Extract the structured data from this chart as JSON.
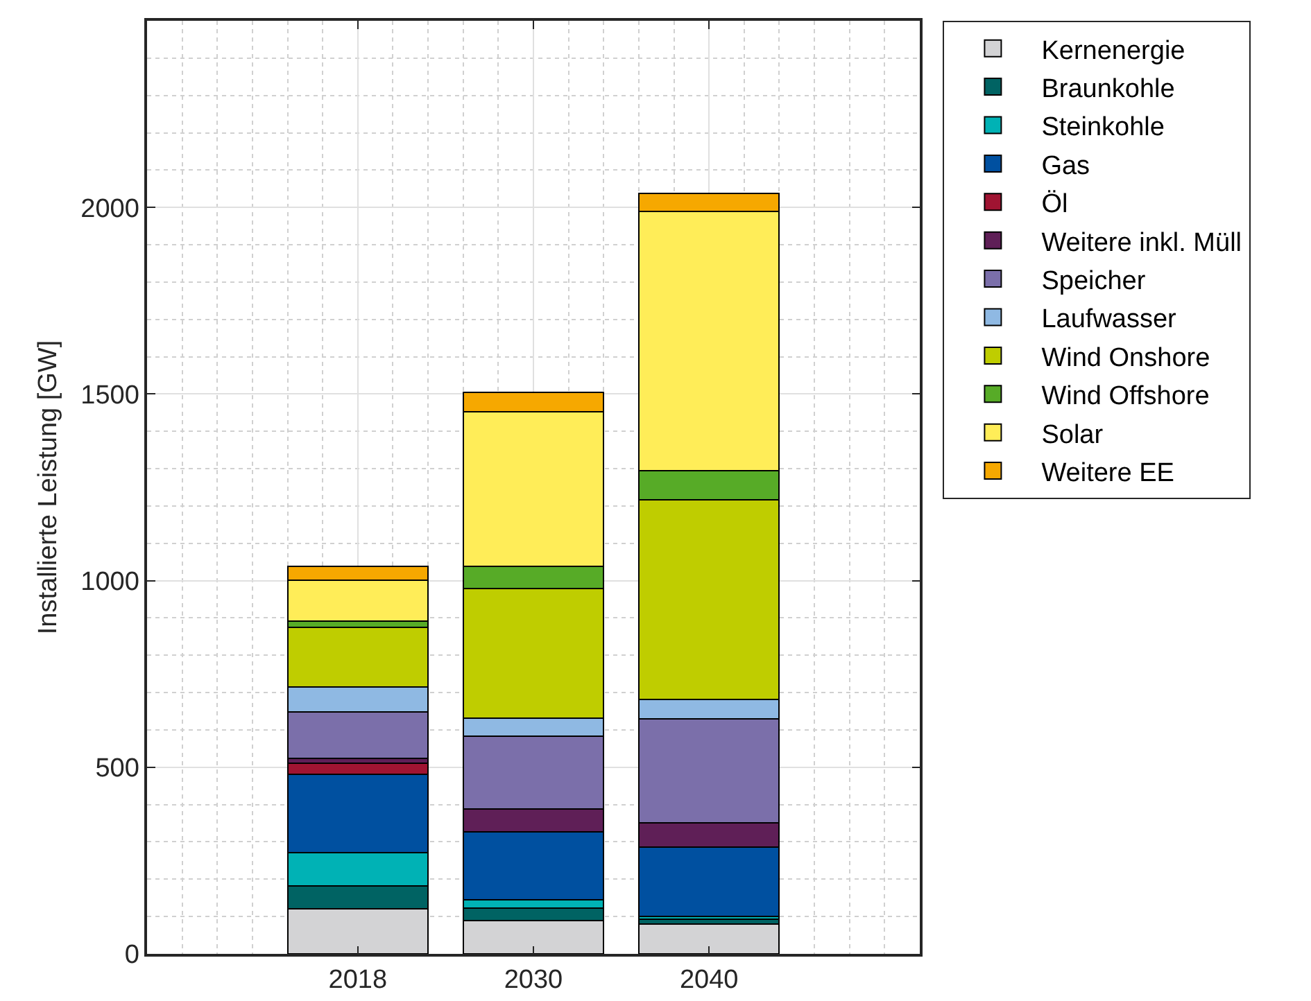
{
  "chart_data": {
    "type": "bar",
    "stacked": true,
    "ylabel": "Installierte Leistung [GW]",
    "categories": [
      "2018",
      "2030",
      "2040"
    ],
    "series": [
      {
        "name": "Kernenergie",
        "color": "#d3d3d5",
        "values": [
          121,
          89,
          79
        ]
      },
      {
        "name": "Braunkohle",
        "color": "#006363",
        "values": [
          61,
          33,
          13
        ]
      },
      {
        "name": "Steinkohle",
        "color": "#00b2b5",
        "values": [
          89,
          22,
          8
        ]
      },
      {
        "name": "Gas",
        "color": "#0050a0",
        "values": [
          210,
          183,
          186
        ]
      },
      {
        "name": "Öl",
        "color": "#a01432",
        "values": [
          30,
          0,
          0
        ]
      },
      {
        "name": "Weitere inkl. Müll",
        "color": "#5f1f57",
        "values": [
          12,
          61,
          65
        ]
      },
      {
        "name": "Speicher",
        "color": "#7b6faa",
        "values": [
          125,
          195,
          279
        ]
      },
      {
        "name": "Laufwasser",
        "color": "#8fb9e3",
        "values": [
          68,
          49,
          52
        ]
      },
      {
        "name": "Wind Onshore",
        "color": "#bfcd00",
        "values": [
          159,
          346,
          535
        ]
      },
      {
        "name": "Wind Offshore",
        "color": "#57ab27",
        "values": [
          16,
          60,
          78
        ]
      },
      {
        "name": "Solar",
        "color": "#ffed58",
        "values": [
          110,
          414,
          694
        ]
      },
      {
        "name": "Weitere EE",
        "color": "#f6a800",
        "values": [
          37,
          52,
          48
        ]
      }
    ],
    "ylim": [
      0,
      2500
    ],
    "yticks": [
      0,
      500,
      1000,
      1500,
      2000
    ],
    "grid": true,
    "legend": "top right"
  }
}
